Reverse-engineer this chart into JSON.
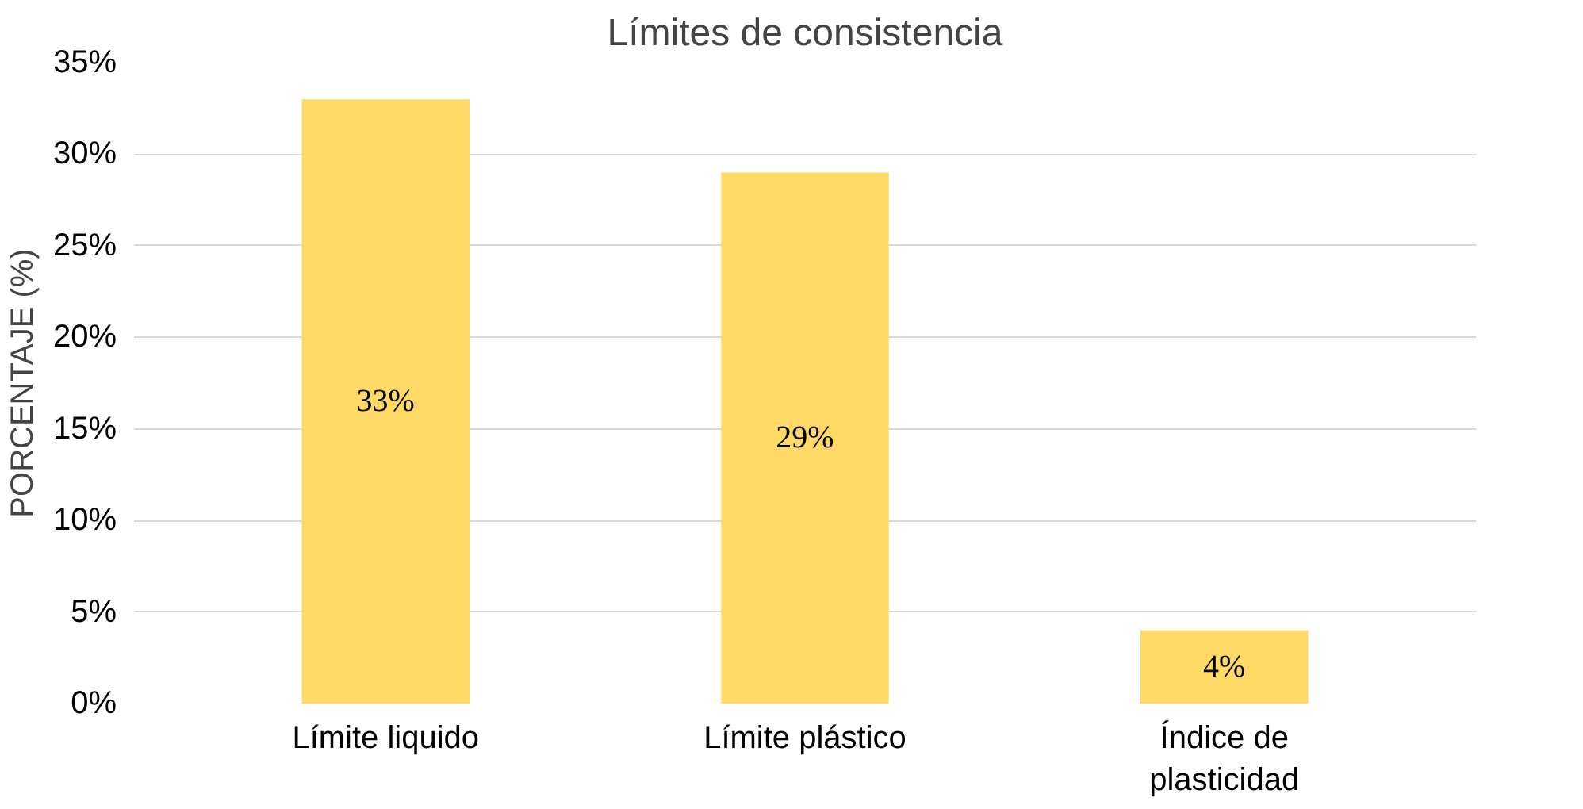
{
  "chart_data": {
    "type": "bar",
    "title": "Límites de consistencia",
    "ylabel": "PORCENTAJE (%)",
    "categories": [
      "Límite liquido",
      "Límite plástico",
      "Índice de\nplasticidad"
    ],
    "values": [
      33,
      29,
      4
    ],
    "value_labels": [
      "33%",
      "29%",
      "4%"
    ],
    "color": "#ffd966",
    "ylim": [
      0,
      35
    ],
    "yticks": [
      {
        "value": 0,
        "label": "0%"
      },
      {
        "value": 5,
        "label": "5%"
      },
      {
        "value": 10,
        "label": "10%"
      },
      {
        "value": 15,
        "label": "15%"
      },
      {
        "value": 20,
        "label": "20%"
      },
      {
        "value": 25,
        "label": "25%"
      },
      {
        "value": 30,
        "label": "30%"
      },
      {
        "value": 35,
        "label": "35%"
      }
    ],
    "grid": "y"
  }
}
